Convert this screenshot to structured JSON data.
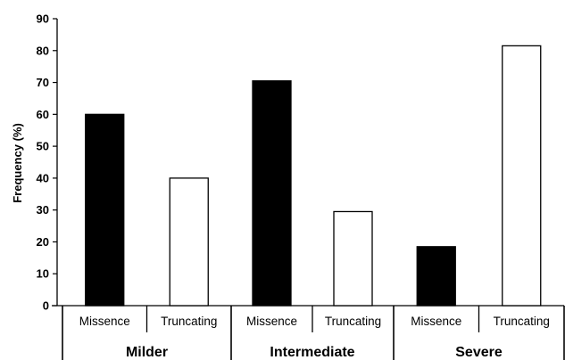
{
  "chart_data": {
    "type": "bar",
    "ylabel": "Frequency (%)",
    "ylim": [
      0,
      90
    ],
    "yticks": [
      0,
      10,
      20,
      30,
      40,
      50,
      60,
      70,
      80,
      90
    ],
    "groups": [
      {
        "label": "Milder",
        "bars": [
          {
            "label": "Missence",
            "value": 60,
            "fill": "#000000"
          },
          {
            "label": "Truncating",
            "value": 40,
            "fill": "#ffffff"
          }
        ]
      },
      {
        "label": "Intermediate",
        "bars": [
          {
            "label": "Missence",
            "value": 70.5,
            "fill": "#000000"
          },
          {
            "label": "Truncating",
            "value": 29.5,
            "fill": "#ffffff"
          }
        ]
      },
      {
        "label": "Severe",
        "bars": [
          {
            "label": "Missence",
            "value": 18.5,
            "fill": "#000000"
          },
          {
            "label": "Truncating",
            "value": 81.5,
            "fill": "#ffffff"
          }
        ]
      }
    ],
    "grid": false,
    "legend": "none"
  }
}
